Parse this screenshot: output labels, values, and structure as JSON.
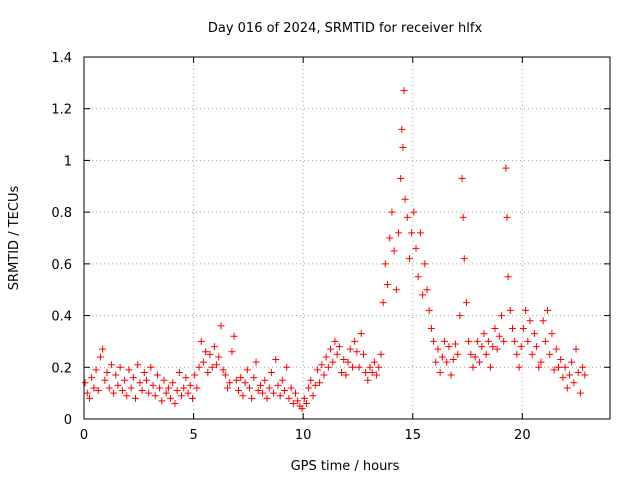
{
  "chart_data": {
    "type": "scatter",
    "title": "Day 016 of 2024, SRMTID for receiver hlfx",
    "xlabel": "GPS time / hours",
    "ylabel": "SRMTID / TECUs",
    "xlim": [
      0,
      24
    ],
    "ylim": [
      0,
      1.4
    ],
    "grid": true,
    "marker": "+",
    "series": [
      {
        "name": "SRMTID",
        "color": "#ff0000",
        "points": [
          [
            0.05,
            0.14
          ],
          [
            0.15,
            0.1
          ],
          [
            0.25,
            0.08
          ],
          [
            0.35,
            0.16
          ],
          [
            0.45,
            0.12
          ],
          [
            0.55,
            0.19
          ],
          [
            0.65,
            0.11
          ],
          [
            0.75,
            0.24
          ],
          [
            0.85,
            0.27
          ],
          [
            0.95,
            0.15
          ],
          [
            1.05,
            0.18
          ],
          [
            1.15,
            0.12
          ],
          [
            1.25,
            0.21
          ],
          [
            1.35,
            0.1
          ],
          [
            1.45,
            0.17
          ],
          [
            1.55,
            0.13
          ],
          [
            1.65,
            0.2
          ],
          [
            1.75,
            0.11
          ],
          [
            1.85,
            0.15
          ],
          [
            1.95,
            0.09
          ],
          [
            2.05,
            0.19
          ],
          [
            2.15,
            0.12
          ],
          [
            2.25,
            0.16
          ],
          [
            2.35,
            0.08
          ],
          [
            2.45,
            0.21
          ],
          [
            2.55,
            0.14
          ],
          [
            2.65,
            0.11
          ],
          [
            2.75,
            0.18
          ],
          [
            2.85,
            0.15
          ],
          [
            2.95,
            0.1
          ],
          [
            3.05,
            0.2
          ],
          [
            3.15,
            0.13
          ],
          [
            3.25,
            0.09
          ],
          [
            3.35,
            0.17
          ],
          [
            3.45,
            0.12
          ],
          [
            3.55,
            0.07
          ],
          [
            3.65,
            0.15
          ],
          [
            3.75,
            0.1
          ],
          [
            3.85,
            0.12
          ],
          [
            3.95,
            0.08
          ],
          [
            4.05,
            0.14
          ],
          [
            4.15,
            0.06
          ],
          [
            4.25,
            0.11
          ],
          [
            4.35,
            0.18
          ],
          [
            4.45,
            0.09
          ],
          [
            4.55,
            0.12
          ],
          [
            4.65,
            0.16
          ],
          [
            4.75,
            0.1
          ],
          [
            4.85,
            0.13
          ],
          [
            4.95,
            0.08
          ],
          [
            5.05,
            0.17
          ],
          [
            5.15,
            0.12
          ],
          [
            5.25,
            0.2
          ],
          [
            5.35,
            0.3
          ],
          [
            5.45,
            0.22
          ],
          [
            5.55,
            0.26
          ],
          [
            5.65,
            0.18
          ],
          [
            5.75,
            0.25
          ],
          [
            5.85,
            0.2
          ],
          [
            5.95,
            0.28
          ],
          [
            6.05,
            0.21
          ],
          [
            6.15,
            0.24
          ],
          [
            6.25,
            0.36
          ],
          [
            6.35,
            0.19
          ],
          [
            6.45,
            0.17
          ],
          [
            6.55,
            0.12
          ],
          [
            6.65,
            0.14
          ],
          [
            6.75,
            0.26
          ],
          [
            6.85,
            0.32
          ],
          [
            6.95,
            0.15
          ],
          [
            7.05,
            0.11
          ],
          [
            7.15,
            0.16
          ],
          [
            7.25,
            0.09
          ],
          [
            7.35,
            0.14
          ],
          [
            7.45,
            0.19
          ],
          [
            7.55,
            0.12
          ],
          [
            7.65,
            0.08
          ],
          [
            7.75,
            0.16
          ],
          [
            7.85,
            0.22
          ],
          [
            7.95,
            0.11
          ],
          [
            8.05,
            0.13
          ],
          [
            8.15,
            0.1
          ],
          [
            8.25,
            0.15
          ],
          [
            8.35,
            0.08
          ],
          [
            8.45,
            0.12
          ],
          [
            8.55,
            0.18
          ],
          [
            8.65,
            0.1
          ],
          [
            8.75,
            0.23
          ],
          [
            8.85,
            0.13
          ],
          [
            8.95,
            0.09
          ],
          [
            9.05,
            0.15
          ],
          [
            9.15,
            0.11
          ],
          [
            9.25,
            0.2
          ],
          [
            9.35,
            0.08
          ],
          [
            9.45,
            0.12
          ],
          [
            9.55,
            0.06
          ],
          [
            9.65,
            0.1
          ],
          [
            9.75,
            0.07
          ],
          [
            9.85,
            0.05
          ],
          [
            9.95,
            0.04
          ],
          [
            10.05,
            0.08
          ],
          [
            10.15,
            0.06
          ],
          [
            10.25,
            0.12
          ],
          [
            10.35,
            0.15
          ],
          [
            10.45,
            0.09
          ],
          [
            10.55,
            0.13
          ],
          [
            10.65,
            0.19
          ],
          [
            10.75,
            0.14
          ],
          [
            10.85,
            0.21
          ],
          [
            10.95,
            0.17
          ],
          [
            11.05,
            0.24
          ],
          [
            11.15,
            0.2
          ],
          [
            11.25,
            0.27
          ],
          [
            11.35,
            0.22
          ],
          [
            11.45,
            0.3
          ],
          [
            11.55,
            0.25
          ],
          [
            11.65,
            0.28
          ],
          [
            11.75,
            0.18
          ],
          [
            11.85,
            0.23
          ],
          [
            11.95,
            0.17
          ],
          [
            12.05,
            0.22
          ],
          [
            12.15,
            0.27
          ],
          [
            12.25,
            0.2
          ],
          [
            12.35,
            0.3
          ],
          [
            12.45,
            0.26
          ],
          [
            12.55,
            0.2
          ],
          [
            12.65,
            0.33
          ],
          [
            12.75,
            0.25
          ],
          [
            12.85,
            0.18
          ],
          [
            12.95,
            0.15
          ],
          [
            13.05,
            0.2
          ],
          [
            13.15,
            0.18
          ],
          [
            13.25,
            0.22
          ],
          [
            13.35,
            0.17
          ],
          [
            13.45,
            0.2
          ],
          [
            13.55,
            0.25
          ],
          [
            13.65,
            0.45
          ],
          [
            13.75,
            0.6
          ],
          [
            13.85,
            0.52
          ],
          [
            13.95,
            0.7
          ],
          [
            14.05,
            0.8
          ],
          [
            14.15,
            0.65
          ],
          [
            14.25,
            0.5
          ],
          [
            14.35,
            0.72
          ],
          [
            14.45,
            0.93
          ],
          [
            14.5,
            1.12
          ],
          [
            14.55,
            1.05
          ],
          [
            14.6,
            1.27
          ],
          [
            14.65,
            0.85
          ],
          [
            14.75,
            0.78
          ],
          [
            14.85,
            0.62
          ],
          [
            14.95,
            0.72
          ],
          [
            15.05,
            0.8
          ],
          [
            15.15,
            0.66
          ],
          [
            15.25,
            0.55
          ],
          [
            15.35,
            0.72
          ],
          [
            15.45,
            0.48
          ],
          [
            15.55,
            0.6
          ],
          [
            15.65,
            0.5
          ],
          [
            15.75,
            0.42
          ],
          [
            15.85,
            0.35
          ],
          [
            15.95,
            0.3
          ],
          [
            16.05,
            0.22
          ],
          [
            16.15,
            0.27
          ],
          [
            16.25,
            0.18
          ],
          [
            16.35,
            0.24
          ],
          [
            16.45,
            0.3
          ],
          [
            16.55,
            0.22
          ],
          [
            16.65,
            0.28
          ],
          [
            16.75,
            0.17
          ],
          [
            16.85,
            0.23
          ],
          [
            16.95,
            0.29
          ],
          [
            17.05,
            0.25
          ],
          [
            17.15,
            0.4
          ],
          [
            17.25,
            0.93
          ],
          [
            17.3,
            0.78
          ],
          [
            17.35,
            0.62
          ],
          [
            17.45,
            0.45
          ],
          [
            17.55,
            0.3
          ],
          [
            17.65,
            0.25
          ],
          [
            17.75,
            0.2
          ],
          [
            17.85,
            0.24
          ],
          [
            17.95,
            0.3
          ],
          [
            18.05,
            0.22
          ],
          [
            18.15,
            0.28
          ],
          [
            18.25,
            0.33
          ],
          [
            18.35,
            0.25
          ],
          [
            18.45,
            0.3
          ],
          [
            18.55,
            0.2
          ],
          [
            18.65,
            0.28
          ],
          [
            18.75,
            0.35
          ],
          [
            18.85,
            0.27
          ],
          [
            18.95,
            0.32
          ],
          [
            19.05,
            0.4
          ],
          [
            19.15,
            0.3
          ],
          [
            19.25,
            0.97
          ],
          [
            19.3,
            0.78
          ],
          [
            19.35,
            0.55
          ],
          [
            19.45,
            0.42
          ],
          [
            19.55,
            0.35
          ],
          [
            19.65,
            0.3
          ],
          [
            19.75,
            0.25
          ],
          [
            19.85,
            0.2
          ],
          [
            19.95,
            0.28
          ],
          [
            20.05,
            0.35
          ],
          [
            20.15,
            0.42
          ],
          [
            20.25,
            0.3
          ],
          [
            20.35,
            0.38
          ],
          [
            20.45,
            0.25
          ],
          [
            20.55,
            0.33
          ],
          [
            20.65,
            0.28
          ],
          [
            20.75,
            0.2
          ],
          [
            20.85,
            0.22
          ],
          [
            20.95,
            0.38
          ],
          [
            21.05,
            0.3
          ],
          [
            21.15,
            0.42
          ],
          [
            21.25,
            0.25
          ],
          [
            21.35,
            0.33
          ],
          [
            21.45,
            0.19
          ],
          [
            21.55,
            0.27
          ],
          [
            21.65,
            0.2
          ],
          [
            21.75,
            0.23
          ],
          [
            21.85,
            0.16
          ],
          [
            21.95,
            0.2
          ],
          [
            22.05,
            0.12
          ],
          [
            22.15,
            0.17
          ],
          [
            22.25,
            0.22
          ],
          [
            22.35,
            0.14
          ],
          [
            22.45,
            0.27
          ],
          [
            22.55,
            0.18
          ],
          [
            22.65,
            0.1
          ],
          [
            22.75,
            0.2
          ],
          [
            22.85,
            0.17
          ]
        ]
      }
    ],
    "x_ticks": [
      0,
      5,
      10,
      15,
      20
    ],
    "y_ticks": [
      0,
      0.2,
      0.4,
      0.6,
      0.8,
      1,
      1.2,
      1.4
    ]
  }
}
